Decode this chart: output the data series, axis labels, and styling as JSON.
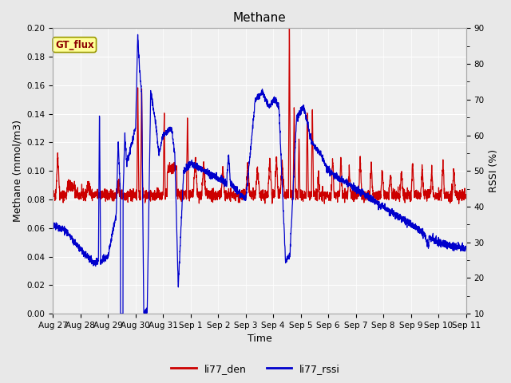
{
  "title": "Methane",
  "xlabel": "Time",
  "ylabel_left": "Methane (mmol/m3)",
  "ylabel_right": "RSSI (%)",
  "ylim_left": [
    0.0,
    0.2
  ],
  "ylim_right": [
    10,
    90
  ],
  "yticks_left": [
    0.0,
    0.02,
    0.04,
    0.06,
    0.08,
    0.1,
    0.12,
    0.14,
    0.16,
    0.18,
    0.2
  ],
  "yticks_right": [
    10,
    20,
    30,
    40,
    50,
    60,
    70,
    80,
    90
  ],
  "xtick_labels": [
    "Aug 27",
    "Aug 28",
    "Aug 29",
    "Aug 30",
    "Aug 31",
    "Sep 1",
    "Sep 2",
    "Sep 3",
    "Sep 4",
    "Sep 5",
    "Sep 6",
    "Sep 7",
    "Sep 8",
    "Sep 9",
    "Sep 10",
    "Sep 11"
  ],
  "legend_labels": [
    "li77_den",
    "li77_rssi"
  ],
  "color_den": "#cc0000",
  "color_rssi": "#0000cc",
  "fig_bg_color": "#e8e8e8",
  "plot_bg_color": "#f0f0f0",
  "grid_color": "#ffffff",
  "box_facecolor": "#ffff99",
  "box_edgecolor": "#999900",
  "box_text": "GT_flux",
  "box_text_color": "#8B0000",
  "title_fontsize": 11,
  "label_fontsize": 9,
  "tick_fontsize": 7.5,
  "linewidth": 0.9
}
